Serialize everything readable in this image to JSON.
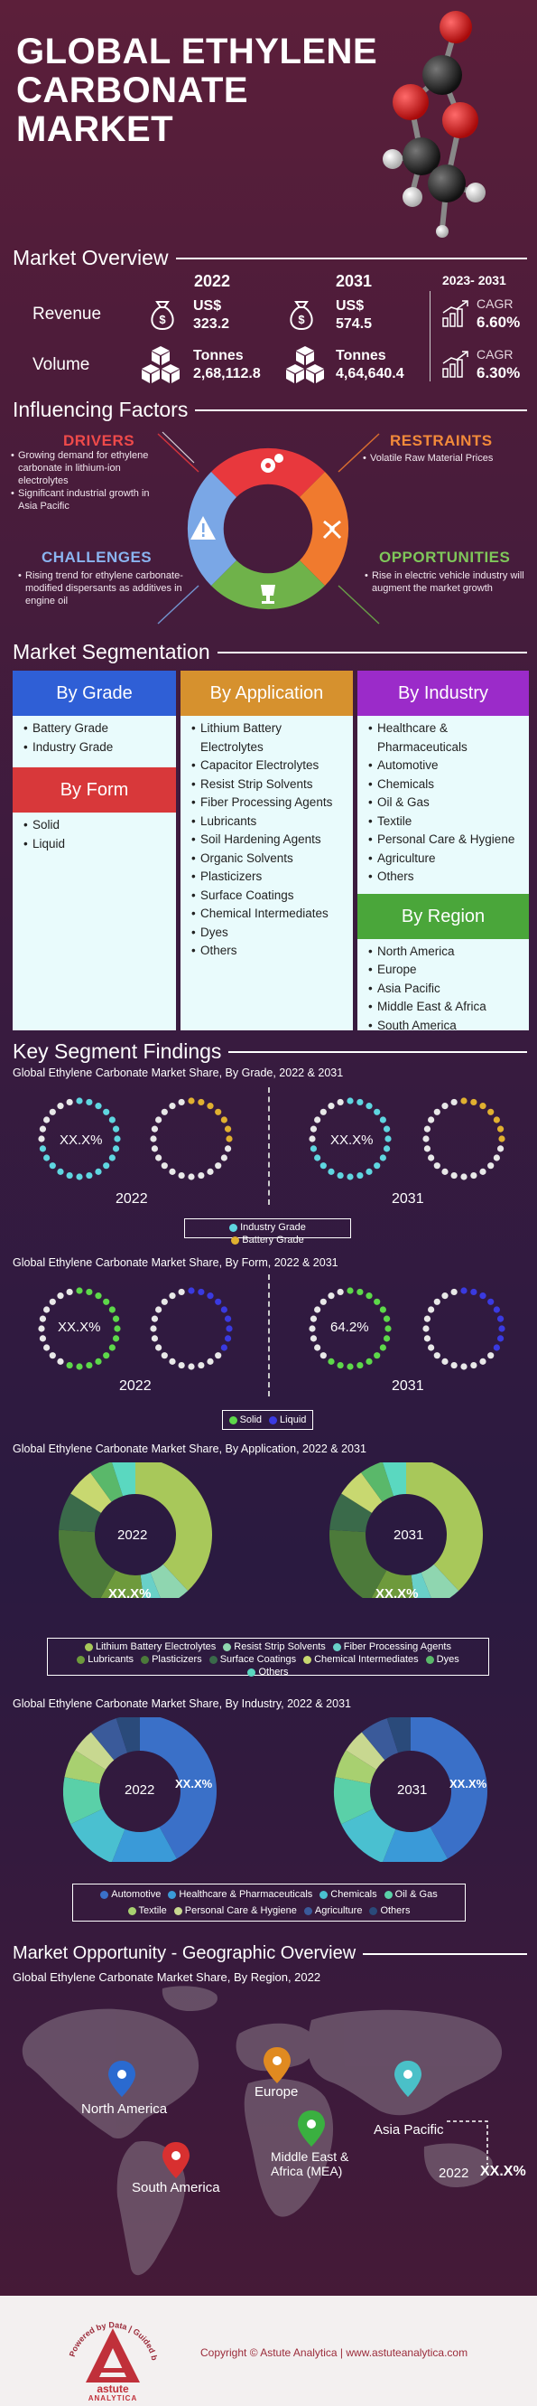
{
  "header": {
    "title_lines": [
      "GLOBAL ETHYLENE",
      "CARBONATE",
      "MARKET"
    ]
  },
  "overview": {
    "heading": "Market Overview",
    "year_start": "2022",
    "year_end": "2031",
    "cagr_period": "2023- 2031",
    "revenue": {
      "label": "Revenue",
      "unit_start": "US$",
      "value_start": "323.2",
      "unit_end": "US$",
      "value_end": "574.5",
      "cagr_label": "CAGR",
      "cagr_value": "6.60%"
    },
    "volume": {
      "label": "Volume",
      "unit_start": "Tonnes",
      "value_start": "2,68,112.8",
      "unit_end": "Tonnes",
      "value_end": "4,64,640.4",
      "cagr_label": "CAGR",
      "cagr_value": "6.30%"
    }
  },
  "factors": {
    "heading": "Influencing Factors",
    "drivers": {
      "title": "DRIVERS",
      "items": [
        "Growing demand for ethylene carbonate in lithium-ion electrolytes",
        "Significant industrial growth in Asia Pacific"
      ]
    },
    "restraints": {
      "title": "RESTRAINTS",
      "items": [
        "Volatile Raw Material Prices"
      ]
    },
    "challenges": {
      "title": "CHALLENGES",
      "items": [
        "Rising trend for ethylene carbonate-modified dispersants as additives in engine oil"
      ]
    },
    "opportunities": {
      "title": "OPPORTUNITIES",
      "items": [
        "Rise in electric vehicle industry will augment the market growth"
      ]
    },
    "colors": {
      "drivers": "#e8383d",
      "restraints": "#f07a2e",
      "challenges": "#7aa7e6",
      "opportunities": "#6fb24a"
    }
  },
  "segmentation": {
    "heading": "Market Segmentation",
    "by_grade": {
      "title": "By Grade",
      "items": [
        "Battery Grade",
        "Industry Grade"
      ],
      "color": "#2f5fd6"
    },
    "by_form": {
      "title": "By Form",
      "items": [
        "Solid",
        "Liquid"
      ],
      "color": "#d8383a"
    },
    "by_application": {
      "title": "By Application",
      "items": [
        "Lithium Battery Electrolytes",
        "Capacitor Electrolytes",
        "Resist Strip Solvents",
        "Fiber Processing Agents",
        "Lubricants",
        "Soil Hardening Agents",
        "Organic Solvents",
        "Plasticizers",
        "Surface Coatings",
        "Chemical Intermediates",
        "Dyes",
        "Others"
      ],
      "color": "#d6912e"
    },
    "by_industry": {
      "title": "By Industry",
      "items": [
        "Healthcare & Pharmaceuticals",
        "Automotive",
        "Chemicals",
        "Oil & Gas",
        "Textile",
        "Personal Care & Hygiene",
        "Agriculture",
        "Others"
      ],
      "color": "#9b2bc9"
    },
    "by_region": {
      "title": "By Region",
      "items": [
        "North America",
        "Europe",
        "Asia Pacific",
        "Middle East & Africa",
        "South America"
      ],
      "color": "#4aa63a"
    }
  },
  "findings": {
    "heading": "Key Segment Findings",
    "grade_chart": {
      "title": "Global Ethylene Carbonate Market Share, By Grade, 2022 & 2031",
      "label_2022": "XX.X%",
      "label_2031": "XX.X%",
      "year_a": "2022",
      "year_b": "2031",
      "legend": [
        {
          "name": "Industry Grade",
          "color": "#5fd6e0"
        },
        {
          "name": "Battery Grade",
          "color": "#e0b030"
        }
      ]
    },
    "form_chart": {
      "title": "Global Ethylene Carbonate Market Share, By Form, 2022 & 2031",
      "label_2022": "XX.X%",
      "label_2031": "64.2%",
      "year_a": "2022",
      "year_b": "2031",
      "legend": [
        {
          "name": "Solid",
          "color": "#5dd84a"
        },
        {
          "name": "Liquid",
          "color": "#3a3ae0"
        }
      ]
    },
    "application_chart": {
      "title": "Global Ethylene Carbonate Market Share, By Application,  2022 & 2031",
      "center_a": "2022",
      "center_b": "2031",
      "label_a": "XX.X%",
      "label_b": "XX.X%",
      "legend": [
        {
          "name": "Lithium Battery Electrolytes",
          "color": "#a8c85a"
        },
        {
          "name": "Resist Strip Solvents",
          "color": "#8fd6b0"
        },
        {
          "name": "Fiber Processing Agents",
          "color": "#69d0c8"
        },
        {
          "name": "Lubricants",
          "color": "#6e9a3c"
        },
        {
          "name": "Plasticizers",
          "color": "#4c7a3a"
        },
        {
          "name": "Surface Coatings",
          "color": "#3a6a4a"
        },
        {
          "name": "Chemical Intermediates",
          "color": "#c8d870"
        },
        {
          "name": "Dyes",
          "color": "#5ab86a"
        },
        {
          "name": "Others",
          "color": "#5ad8c0"
        }
      ]
    },
    "industry_chart": {
      "title": "Global Ethylene Carbonate Market Share, By Industry,  2022 & 2031",
      "center_a": "2022",
      "center_b": "2031",
      "label_a": "XX.X%",
      "label_b": "XX.X%",
      "legend": [
        {
          "name": "Automotive",
          "color": "#3a70c8"
        },
        {
          "name": "Healthcare & Pharmaceuticals",
          "color": "#3a9ad8"
        },
        {
          "name": "Chemicals",
          "color": "#4ac0d0"
        },
        {
          "name": "Oil & Gas",
          "color": "#5ad0a8"
        },
        {
          "name": "Textile",
          "color": "#a8d070"
        },
        {
          "name": "Personal Care & Hygiene",
          "color": "#c8d890"
        },
        {
          "name": "Agriculture",
          "color": "#3a5a9a"
        },
        {
          "name": "Others",
          "color": "#2a4a7a"
        }
      ]
    }
  },
  "geography": {
    "heading": "Market Opportunity - Geographic Overview",
    "subtitle": "Global Ethylene Carbonate Market Share, By Region, 2022",
    "regions": [
      {
        "name": "North America",
        "color": "#2a6ad0"
      },
      {
        "name": "Europe",
        "color": "#e08a20"
      },
      {
        "name": "Middle East &",
        "name2": "Africa (MEA)",
        "color": "#3ab040"
      },
      {
        "name": "Asia Pacific",
        "color": "#4ac0c8"
      },
      {
        "name": "South America",
        "color": "#d83030"
      }
    ],
    "year": "2022",
    "value": "XX.X%"
  },
  "footer": {
    "copyright": "Copyright © Astute Analytica  |  www.astuteanalytica.com",
    "logo_arc": "Powered by Data | Guided by Intelligence",
    "logo_name": "astute",
    "logo_sub": "ANALYTICA"
  }
}
